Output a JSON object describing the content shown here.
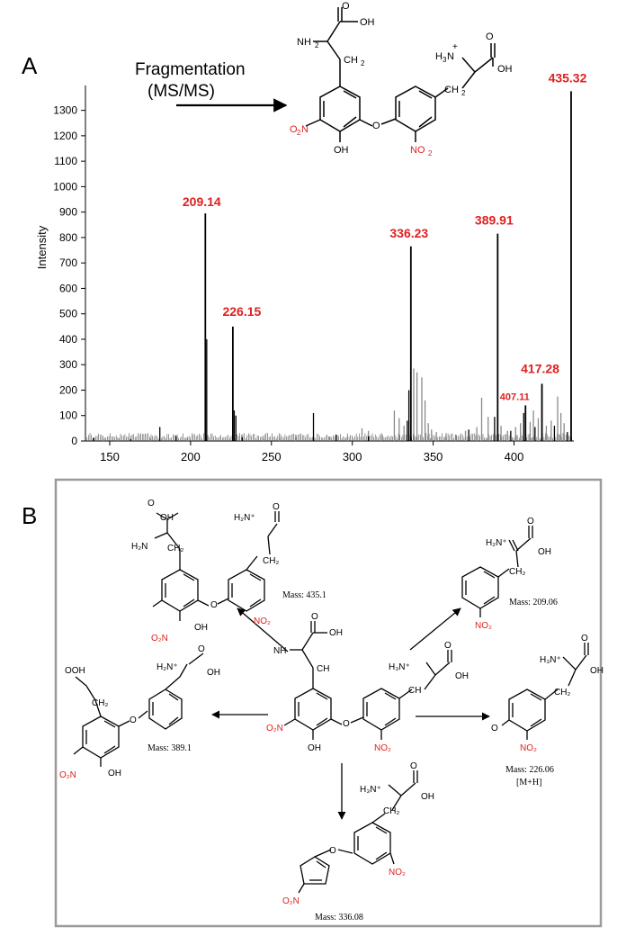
{
  "panel_a": {
    "label": "A",
    "arrow_text_line1": "Fragmentation",
    "arrow_text_line2": "(MS/MS)"
  },
  "panel_b": {
    "label": "B",
    "mass_labels": {
      "m435": "Mass: 435.1",
      "m209": "Mass: 209.06",
      "m389": "Mass: 389.1",
      "m226": "Mass: 226.06",
      "m226_sub": "[M+H]",
      "m336": "Mass: 336.08"
    }
  },
  "chem_labels": {
    "oh": "OH",
    "nh2": "NH",
    "ch2": "CH",
    "no2": "NO",
    "o2n": "O",
    "o": "O",
    "h3n": "H",
    "h2n": "H",
    "sub2": "2",
    "sub3": "3",
    "plus": "+"
  },
  "colors": {
    "accent_red": "#e0201f",
    "line": "#000000",
    "noise": "#8a8a8a",
    "frame": "#9a9a9a"
  },
  "chart_data": {
    "type": "bar",
    "ylabel": "Intensity",
    "xlabel": "",
    "xlim": [
      135,
      437
    ],
    "ylim": [
      0,
      1380
    ],
    "xticks": [
      150,
      200,
      250,
      300,
      350,
      400
    ],
    "yticks": [
      0,
      100,
      200,
      300,
      400,
      500,
      600,
      700,
      800,
      900,
      1000,
      1100,
      1200,
      1300
    ],
    "labeled_peaks": [
      {
        "x": 209.14,
        "y": 895,
        "label": "209.14"
      },
      {
        "x": 226.15,
        "y": 450,
        "label": "226.15"
      },
      {
        "x": 336.23,
        "y": 765,
        "label": "336.23"
      },
      {
        "x": 389.91,
        "y": 815,
        "label": "389.91"
      },
      {
        "x": 407.11,
        "y": 140,
        "label": "407.11"
      },
      {
        "x": 417.28,
        "y": 225,
        "label": "417.28"
      },
      {
        "x": 435.32,
        "y": 1375,
        "label": "435.32"
      }
    ],
    "black_peaks": [
      {
        "x": 181,
        "y": 55
      },
      {
        "x": 191,
        "y": 20
      },
      {
        "x": 210,
        "y": 400
      },
      {
        "x": 227,
        "y": 120
      },
      {
        "x": 228,
        "y": 100
      },
      {
        "x": 232,
        "y": 15
      },
      {
        "x": 276,
        "y": 110
      },
      {
        "x": 335,
        "y": 200
      },
      {
        "x": 334,
        "y": 80
      },
      {
        "x": 388,
        "y": 95
      },
      {
        "x": 406,
        "y": 110
      },
      {
        "x": 425,
        "y": 60
      },
      {
        "x": 433,
        "y": 35
      },
      {
        "x": 140,
        "y": 12
      },
      {
        "x": 163,
        "y": 8
      },
      {
        "x": 290,
        "y": 25
      },
      {
        "x": 310,
        "y": 18
      },
      {
        "x": 372,
        "y": 45
      },
      {
        "x": 398,
        "y": 40
      },
      {
        "x": 413,
        "y": 55
      }
    ],
    "grey_peaks": [
      {
        "x": 338,
        "y": 285
      },
      {
        "x": 340,
        "y": 270
      },
      {
        "x": 343,
        "y": 250
      },
      {
        "x": 345,
        "y": 160
      },
      {
        "x": 329,
        "y": 90
      },
      {
        "x": 326,
        "y": 120
      },
      {
        "x": 332,
        "y": 60
      },
      {
        "x": 347,
        "y": 70
      },
      {
        "x": 349,
        "y": 45
      },
      {
        "x": 352,
        "y": 35
      },
      {
        "x": 306,
        "y": 50
      },
      {
        "x": 310,
        "y": 40
      },
      {
        "x": 318,
        "y": 30
      },
      {
        "x": 380,
        "y": 170
      },
      {
        "x": 384,
        "y": 95
      },
      {
        "x": 392,
        "y": 60
      },
      {
        "x": 396,
        "y": 40
      },
      {
        "x": 401,
        "y": 55
      },
      {
        "x": 404,
        "y": 70
      },
      {
        "x": 410,
        "y": 75
      },
      {
        "x": 412,
        "y": 120
      },
      {
        "x": 415,
        "y": 90
      },
      {
        "x": 420,
        "y": 60
      },
      {
        "x": 423,
        "y": 80
      },
      {
        "x": 427,
        "y": 175
      },
      {
        "x": 429,
        "y": 110
      },
      {
        "x": 431,
        "y": 70
      },
      {
        "x": 358,
        "y": 30
      },
      {
        "x": 364,
        "y": 25
      },
      {
        "x": 370,
        "y": 40
      },
      {
        "x": 377,
        "y": 55
      },
      {
        "x": 297,
        "y": 20
      },
      {
        "x": 286,
        "y": 18
      },
      {
        "x": 265,
        "y": 14
      },
      {
        "x": 255,
        "y": 12
      },
      {
        "x": 245,
        "y": 10
      },
      {
        "x": 198,
        "y": 16
      },
      {
        "x": 175,
        "y": 10
      },
      {
        "x": 155,
        "y": 9
      },
      {
        "x": 146,
        "y": 8
      }
    ]
  }
}
